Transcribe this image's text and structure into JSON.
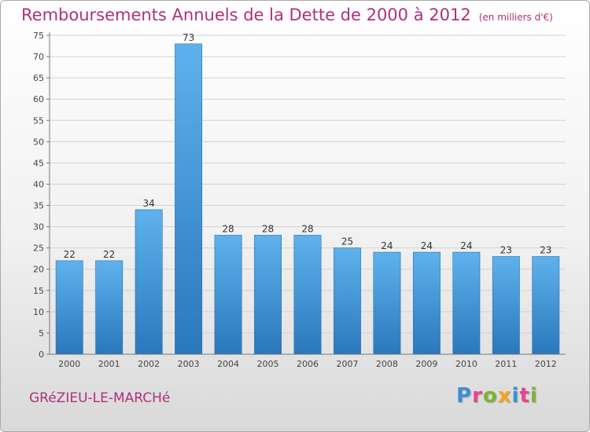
{
  "chart_data": {
    "type": "bar",
    "title": "Remboursements Annuels de la Dette de 2000 à 2012",
    "subtitle": "(en milliers d'€)",
    "categories": [
      "2000",
      "2001",
      "2002",
      "2003",
      "2004",
      "2005",
      "2006",
      "2007",
      "2008",
      "2009",
      "2010",
      "2011",
      "2012"
    ],
    "values": [
      22,
      22,
      34,
      73,
      28,
      28,
      28,
      25,
      24,
      24,
      24,
      23,
      23
    ],
    "ylim": [
      0,
      75
    ],
    "yticks": [
      0,
      5,
      10,
      15,
      20,
      25,
      30,
      35,
      40,
      45,
      50,
      55,
      60,
      65,
      70,
      75
    ],
    "grid": true,
    "bar_color": "#4a9fe0"
  },
  "footer": {
    "place": "GRéZIEU-LE-MARCHé",
    "logo": [
      "P",
      "r",
      "o",
      "x",
      "i",
      "t",
      "i"
    ],
    "logo_colors": [
      "#3b8fd6",
      "#e8458b",
      "#7ab532",
      "#f2a51a",
      "#3b8fd6",
      "#e8458b",
      "#7ab532"
    ]
  }
}
